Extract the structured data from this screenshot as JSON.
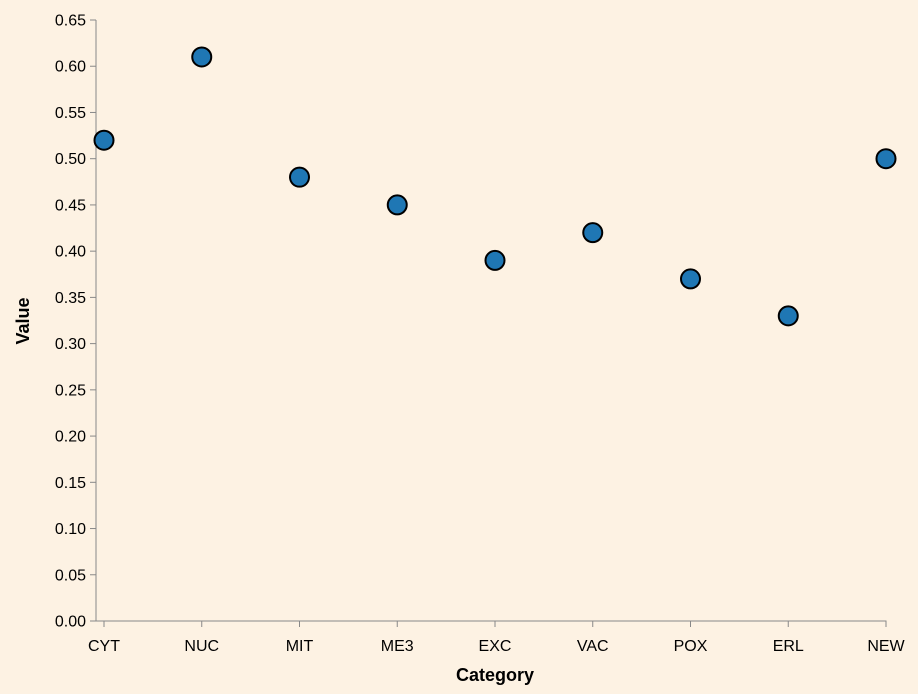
{
  "chart_data": {
    "type": "scatter",
    "categories": [
      "CYT",
      "NUC",
      "MIT",
      "ME3",
      "EXC",
      "VAC",
      "POX",
      "ERL",
      "NEW"
    ],
    "values": [
      0.52,
      0.61,
      0.48,
      0.45,
      0.39,
      0.42,
      0.37,
      0.33,
      0.5
    ],
    "xlabel": "Category",
    "ylabel": "Value",
    "ylim": [
      0,
      0.65
    ],
    "yticks": [
      "0.00",
      "0.05",
      "0.10",
      "0.15",
      "0.20",
      "0.25",
      "0.30",
      "0.35",
      "0.40",
      "0.45",
      "0.50",
      "0.55",
      "0.60",
      "0.65"
    ],
    "grid": false,
    "colors": {
      "point_fill": "#1f77b4",
      "point_stroke": "#000000",
      "background": "#fdf2e3",
      "axis": "#888888"
    }
  }
}
